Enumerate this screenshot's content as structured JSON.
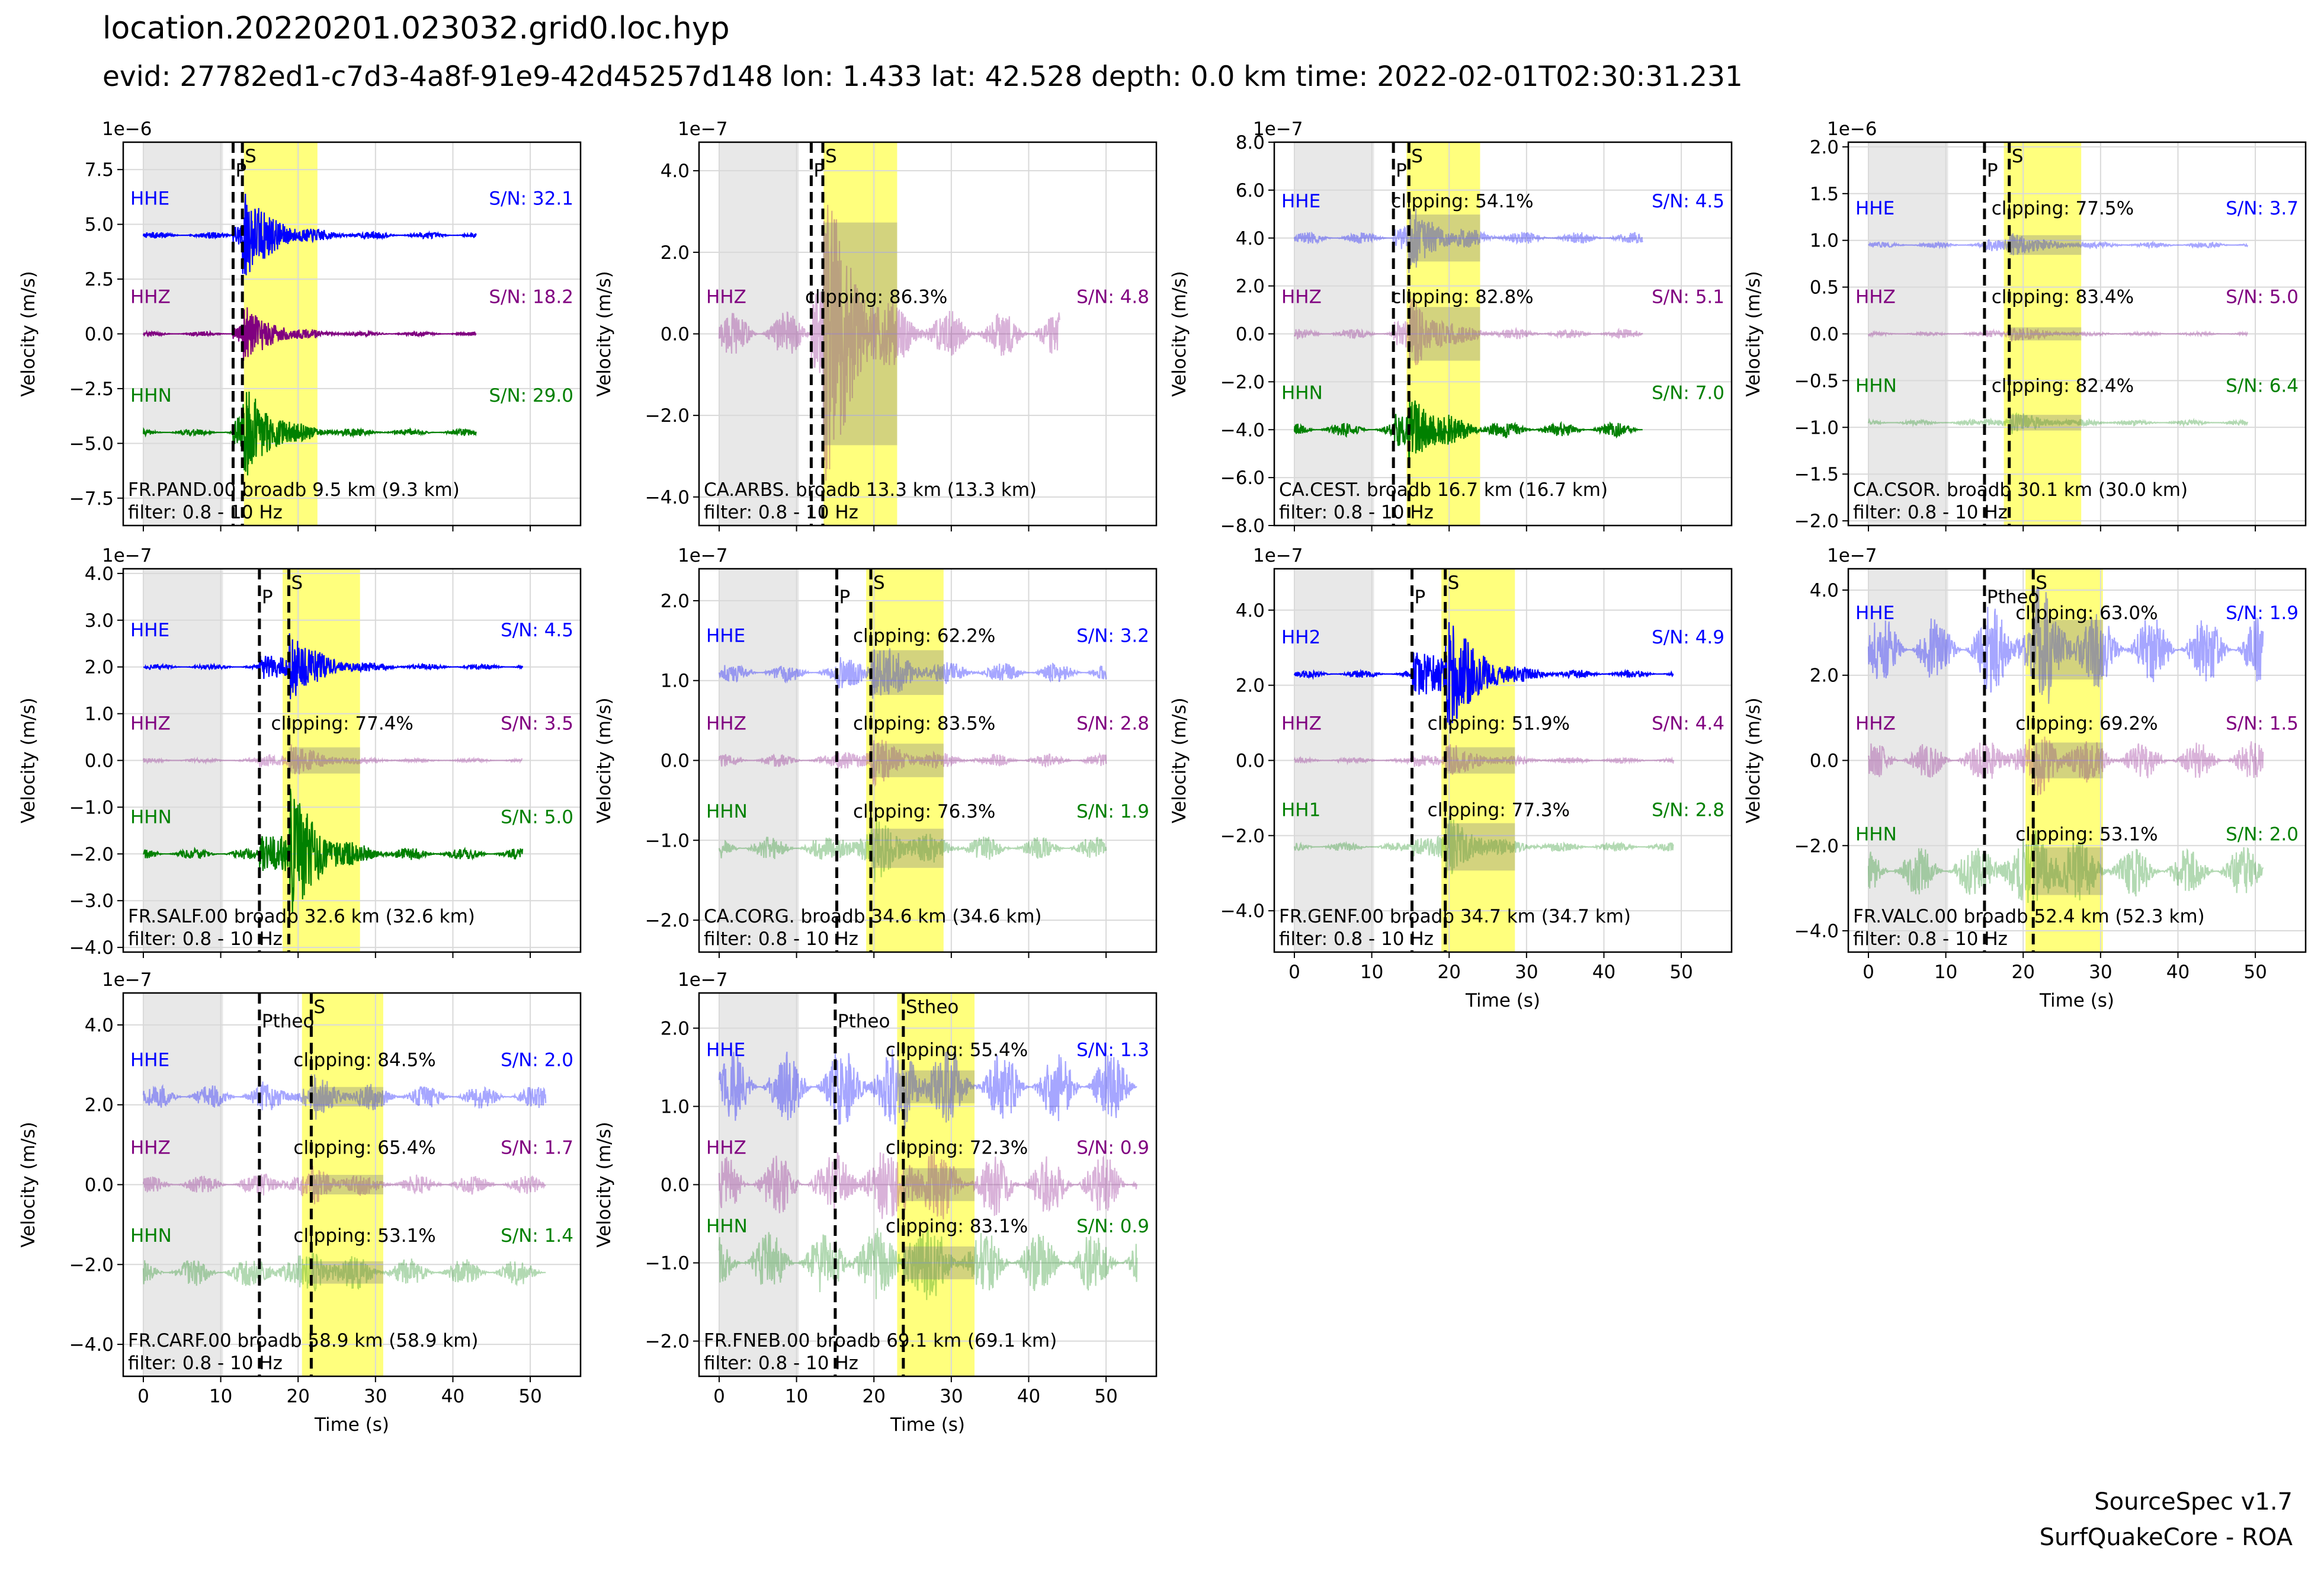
{
  "figure": {
    "title": "location.20220201.023032.grid0.loc.hyp",
    "subtitle": "evid: 27782ed1-c7d3-4a8f-91e9-42d45257d148 lon: 1.433 lat: 42.528 depth: 0.0 km time: 2022-02-01T02:30:31.231",
    "credit_line1": "SourceSpec v1.7",
    "credit_line2": "SurfQuakeCore - ROA"
  },
  "colors": {
    "E": "#0000ff",
    "Z": "#800080",
    "N": "#008000",
    "noise_window": "#e8e8e8",
    "signal_window": "#ffff66",
    "clipped_overlay": "#808080"
  },
  "chart_data": [
    {
      "type": "line",
      "station": "FR.PAND.00 broadb 9.5 km (9.3 km)",
      "filter": "filter: 0.8 - 10 Hz",
      "ylabel": "Velocity (m/s)",
      "xlabel": "Time (s)",
      "show_xlabel": false,
      "exponent": "1e−6",
      "ylim": [
        -8.75,
        8.75
      ],
      "yticks": [
        -7.5,
        -5.0,
        -2.5,
        0.0,
        2.5,
        5.0,
        7.5
      ],
      "ytick_labels": [
        "−7.5",
        "−5.0",
        "−2.5",
        "0.0",
        "2.5",
        "5.0",
        "7.5"
      ],
      "xlim": [
        -2.6,
        56.5
      ],
      "xticks": [
        0,
        10,
        20,
        30,
        40,
        50
      ],
      "xtick_labels": [
        "0",
        "10",
        "20",
        "30",
        "40",
        "50"
      ],
      "noise_window": [
        0,
        10.3
      ],
      "signal_window": [
        13,
        22.5
      ],
      "p_time": 11.6,
      "p_label": "P",
      "s_time": 12.8,
      "s_label": "S",
      "trace_end": 43,
      "traces": [
        {
          "component": "HHE",
          "comp_key": "E",
          "offset": 4.5,
          "alpha": 1.0,
          "sn": "S/N: 32.1",
          "clipping": "",
          "amp": 0.15,
          "peak": 2.2
        },
        {
          "component": "HHZ",
          "comp_key": "Z",
          "offset": 0.0,
          "alpha": 1.0,
          "sn": "S/N: 18.2",
          "clipping": "",
          "amp": 0.1,
          "peak": 1.4
        },
        {
          "component": "HHN",
          "comp_key": "N",
          "offset": -4.5,
          "alpha": 1.0,
          "sn": "S/N: 29.0",
          "clipping": "",
          "amp": 0.15,
          "peak": 2.3
        }
      ]
    },
    {
      "type": "line",
      "station": "CA.ARBS. broadb 13.3 km (13.3 km)",
      "filter": "filter: 0.8 - 10 Hz",
      "ylabel": "Velocity (m/s)",
      "xlabel": "Time (s)",
      "show_xlabel": false,
      "exponent": "1e−7",
      "ylim": [
        -4.7,
        4.7
      ],
      "yticks": [
        -4.0,
        -2.0,
        0.0,
        2.0,
        4.0
      ],
      "ytick_labels": [
        "−4.0",
        "−2.0",
        "0.0",
        "2.0",
        "4.0"
      ],
      "xlim": [
        -2.6,
        56.5
      ],
      "xticks": [
        0,
        10,
        20,
        30,
        40,
        50
      ],
      "xtick_labels": [
        "0",
        "10",
        "20",
        "30",
        "40",
        "50"
      ],
      "noise_window": [
        0,
        10.3
      ],
      "signal_window": [
        13.5,
        23
      ],
      "p_time": 11.9,
      "p_label": "P",
      "s_time": 13.4,
      "s_label": "S",
      "trace_end": 44,
      "traces": [
        {
          "component": "HHZ",
          "comp_key": "Z",
          "offset": 0.0,
          "alpha": 0.3,
          "sn": "S/N: 4.8",
          "clipping": "clipping: 86.3%",
          "amp": 0.55,
          "peak": 3.9
        }
      ]
    },
    {
      "type": "line",
      "station": "CA.CEST. broadb 16.7 km (16.7 km)",
      "filter": "filter: 0.8 - 10 Hz",
      "ylabel": "Velocity (m/s)",
      "xlabel": "Time (s)",
      "show_xlabel": false,
      "exponent": "1e−7",
      "ylim": [
        -8.0,
        8.0
      ],
      "yticks": [
        -8.0,
        -6.0,
        -4.0,
        -2.0,
        0.0,
        2.0,
        4.0,
        6.0,
        8.0
      ],
      "ytick_labels": [
        "−8.0",
        "−6.0",
        "−4.0",
        "−2.0",
        "0.0",
        "2.0",
        "4.0",
        "6.0",
        "8.0"
      ],
      "xlim": [
        -2.6,
        56.5
      ],
      "xticks": [
        0,
        10,
        20,
        30,
        40,
        50
      ],
      "xtick_labels": [
        "0",
        "10",
        "20",
        "30",
        "40",
        "50"
      ],
      "noise_window": [
        0,
        10.3
      ],
      "signal_window": [
        14.5,
        24
      ],
      "p_time": 12.8,
      "p_label": "P",
      "s_time": 14.8,
      "s_label": "S",
      "trace_end": 45,
      "traces": [
        {
          "component": "HHE",
          "comp_key": "E",
          "offset": 4.0,
          "alpha": 0.35,
          "sn": "S/N: 4.5",
          "clipping": "clipping: 54.1%",
          "amp": 0.25,
          "peak": 1.4
        },
        {
          "component": "HHZ",
          "comp_key": "Z",
          "offset": 0.0,
          "alpha": 0.3,
          "sn": "S/N: 5.1",
          "clipping": "clipping: 82.8%",
          "amp": 0.2,
          "peak": 1.6
        },
        {
          "component": "HHN",
          "comp_key": "N",
          "offset": -4.0,
          "alpha": 1.0,
          "sn": "S/N: 7.0",
          "clipping": "",
          "amp": 0.3,
          "peak": 1.5
        }
      ]
    },
    {
      "type": "line",
      "station": "CA.CSOR. broadb 30.1 km (30.0 km)",
      "filter": "filter: 0.8 - 10 Hz",
      "ylabel": "Velocity (m/s)",
      "xlabel": "Time (s)",
      "show_xlabel": false,
      "exponent": "1e−6",
      "ylim": [
        -2.05,
        2.05
      ],
      "yticks": [
        -2.0,
        -1.5,
        -1.0,
        -0.5,
        0.0,
        0.5,
        1.0,
        1.5,
        2.0
      ],
      "ytick_labels": [
        "−2.0",
        "−1.5",
        "−1.0",
        "−0.5",
        "0.0",
        "0.5",
        "1.0",
        "1.5",
        "2.0"
      ],
      "xlim": [
        -2.6,
        56.5
      ],
      "xticks": [
        0,
        10,
        20,
        30,
        40,
        50
      ],
      "xtick_labels": [
        "0",
        "10",
        "20",
        "30",
        "40",
        "50"
      ],
      "noise_window": [
        0,
        10.3
      ],
      "signal_window": [
        17.5,
        27.5
      ],
      "p_time": 15.0,
      "p_label": "P",
      "s_time": 18.2,
      "s_label": "S",
      "trace_end": 49,
      "traces": [
        {
          "component": "HHE",
          "comp_key": "E",
          "offset": 0.95,
          "alpha": 0.35,
          "sn": "S/N: 3.7",
          "clipping": "clipping: 77.5%",
          "amp": 0.03,
          "peak": 0.15
        },
        {
          "component": "HHZ",
          "comp_key": "Z",
          "offset": 0.0,
          "alpha": 0.3,
          "sn": "S/N: 5.0",
          "clipping": "clipping: 83.4%",
          "amp": 0.02,
          "peak": 0.1
        },
        {
          "component": "HHN",
          "comp_key": "N",
          "offset": -0.95,
          "alpha": 0.3,
          "sn": "S/N: 6.4",
          "clipping": "clipping: 82.4%",
          "amp": 0.03,
          "peak": 0.12
        }
      ]
    },
    {
      "type": "line",
      "station": "FR.SALF.00 broadb 32.6 km (32.6 km)",
      "filter": "filter: 0.8 - 10 Hz",
      "ylabel": "Velocity (m/s)",
      "xlabel": "Time (s)",
      "show_xlabel": false,
      "exponent": "1e−7",
      "ylim": [
        -4.1,
        4.1
      ],
      "yticks": [
        -4.0,
        -3.0,
        -2.0,
        -1.0,
        0.0,
        1.0,
        2.0,
        3.0,
        4.0
      ],
      "ytick_labels": [
        "−4.0",
        "−3.0",
        "−2.0",
        "−1.0",
        "0.0",
        "1.0",
        "2.0",
        "3.0",
        "4.0"
      ],
      "xlim": [
        -2.6,
        56.5
      ],
      "xticks": [
        0,
        10,
        20,
        30,
        40,
        50
      ],
      "xtick_labels": [
        "0",
        "10",
        "20",
        "30",
        "40",
        "50"
      ],
      "noise_window": [
        0,
        10.3
      ],
      "signal_window": [
        18,
        28
      ],
      "p_time": 15.0,
      "p_label": "P",
      "s_time": 18.8,
      "s_label": "S",
      "trace_end": 49,
      "traces": [
        {
          "component": "HHE",
          "comp_key": "E",
          "offset": 2.0,
          "alpha": 1.0,
          "sn": "S/N: 4.5",
          "clipping": "",
          "amp": 0.06,
          "peak": 0.8
        },
        {
          "component": "HHZ",
          "comp_key": "Z",
          "offset": 0.0,
          "alpha": 0.3,
          "sn": "S/N: 3.5",
          "clipping": "clipping: 77.4%",
          "amp": 0.05,
          "peak": 0.4
        },
        {
          "component": "HHN",
          "comp_key": "N",
          "offset": -2.0,
          "alpha": 1.0,
          "sn": "S/N: 5.0",
          "clipping": "",
          "amp": 0.12,
          "peak": 1.5
        }
      ]
    },
    {
      "type": "line",
      "station": "CA.CORG. broadb 34.6 km (34.6 km)",
      "filter": "filter: 0.8 - 10 Hz",
      "ylabel": "Velocity (m/s)",
      "xlabel": "Time (s)",
      "show_xlabel": false,
      "exponent": "1e−7",
      "ylim": [
        -2.4,
        2.4
      ],
      "yticks": [
        -2.0,
        -1.0,
        0.0,
        1.0,
        2.0
      ],
      "ytick_labels": [
        "−2.0",
        "−1.0",
        "0.0",
        "1.0",
        "2.0"
      ],
      "xlim": [
        -2.6,
        56.5
      ],
      "xticks": [
        0,
        10,
        20,
        30,
        40,
        50
      ],
      "xtick_labels": [
        "0",
        "10",
        "20",
        "30",
        "40",
        "50"
      ],
      "noise_window": [
        0,
        10.3
      ],
      "signal_window": [
        19,
        29
      ],
      "p_time": 15.2,
      "p_label": "P",
      "s_time": 19.6,
      "s_label": "S",
      "trace_end": 50,
      "traces": [
        {
          "component": "HHE",
          "comp_key": "E",
          "offset": 1.1,
          "alpha": 0.35,
          "sn": "S/N: 3.2",
          "clipping": "clipping: 62.2%",
          "amp": 0.12,
          "peak": 0.4
        },
        {
          "component": "HHZ",
          "comp_key": "Z",
          "offset": 0.0,
          "alpha": 0.3,
          "sn": "S/N: 2.8",
          "clipping": "clipping: 83.5%",
          "amp": 0.08,
          "peak": 0.3
        },
        {
          "component": "HHN",
          "comp_key": "N",
          "offset": -1.1,
          "alpha": 0.3,
          "sn": "S/N: 1.9",
          "clipping": "clipping: 76.3%",
          "amp": 0.15,
          "peak": 0.35
        }
      ]
    },
    {
      "type": "line",
      "station": "FR.GENF.00 broadb 34.7 km (34.7 km)",
      "filter": "filter: 0.8 - 10 Hz",
      "ylabel": "Velocity (m/s)",
      "xlabel": "Time (s)",
      "show_xlabel": true,
      "exponent": "1e−7",
      "ylim": [
        -5.1,
        5.1
      ],
      "yticks": [
        -4.0,
        -2.0,
        0.0,
        2.0,
        4.0
      ],
      "ytick_labels": [
        "−4.0",
        "−2.0",
        "0.0",
        "2.0",
        "4.0"
      ],
      "xlim": [
        -2.6,
        56.5
      ],
      "xticks": [
        0,
        10,
        20,
        30,
        40,
        50
      ],
      "xtick_labels": [
        "0",
        "10",
        "20",
        "30",
        "40",
        "50"
      ],
      "noise_window": [
        0,
        10.3
      ],
      "signal_window": [
        19,
        28.5
      ],
      "p_time": 15.2,
      "p_label": "P",
      "s_time": 19.5,
      "s_label": "S",
      "trace_end": 49,
      "traces": [
        {
          "component": "HH2",
          "comp_key": "E",
          "offset": 2.3,
          "alpha": 1.0,
          "sn": "S/N: 4.9",
          "clipping": "",
          "amp": 0.1,
          "peak": 1.9
        },
        {
          "component": "HHZ",
          "comp_key": "Z",
          "offset": 0.0,
          "alpha": 0.3,
          "sn": "S/N: 4.4",
          "clipping": "clipping: 51.9%",
          "amp": 0.08,
          "peak": 0.5
        },
        {
          "component": "HH1",
          "comp_key": "N",
          "offset": -2.3,
          "alpha": 0.3,
          "sn": "S/N: 2.8",
          "clipping": "clipping: 77.3%",
          "amp": 0.12,
          "peak": 0.9
        }
      ]
    },
    {
      "type": "line",
      "station": "FR.VALC.00 broadb 52.4 km (52.3 km)",
      "filter": "filter: 0.8 - 10 Hz",
      "ylabel": "Velocity (m/s)",
      "xlabel": "Time (s)",
      "show_xlabel": true,
      "exponent": "1e−7",
      "ylim": [
        -4.5,
        4.5
      ],
      "yticks": [
        -4.0,
        -2.0,
        0.0,
        2.0,
        4.0
      ],
      "ytick_labels": [
        "−4.0",
        "−2.0",
        "0.0",
        "2.0",
        "4.0"
      ],
      "xlim": [
        -2.6,
        56.5
      ],
      "xticks": [
        0,
        10,
        20,
        30,
        40,
        50
      ],
      "xtick_labels": [
        "0",
        "10",
        "20",
        "30",
        "40",
        "50"
      ],
      "noise_window": [
        0,
        10.3
      ],
      "signal_window": [
        20.3,
        30.3
      ],
      "p_time": 15.0,
      "p_label": "Ptheo",
      "s_time": 21.3,
      "s_label": "S",
      "trace_end": 51,
      "traces": [
        {
          "component": "HHE",
          "comp_key": "E",
          "offset": 2.6,
          "alpha": 0.35,
          "sn": "S/N: 1.9",
          "clipping": "clipping: 63.0%",
          "amp": 0.8,
          "peak": 1.0
        },
        {
          "component": "HHZ",
          "comp_key": "Z",
          "offset": 0.0,
          "alpha": 0.3,
          "sn": "S/N: 1.5",
          "clipping": "clipping: 69.2%",
          "amp": 0.45,
          "peak": 0.6
        },
        {
          "component": "HHN",
          "comp_key": "N",
          "offset": -2.6,
          "alpha": 0.3,
          "sn": "S/N: 2.0",
          "clipping": "clipping: 53.1%",
          "amp": 0.6,
          "peak": 0.8
        }
      ]
    },
    {
      "type": "line",
      "station": "FR.CARF.00 broadb 58.9 km (58.9 km)",
      "filter": "filter: 0.8 - 10 Hz",
      "ylabel": "Velocity (m/s)",
      "xlabel": "Time (s)",
      "show_xlabel": true,
      "exponent": "1e−7",
      "ylim": [
        -4.8,
        4.8
      ],
      "yticks": [
        -4.0,
        -2.0,
        0.0,
        2.0,
        4.0
      ],
      "ytick_labels": [
        "−4.0",
        "−2.0",
        "0.0",
        "2.0",
        "4.0"
      ],
      "xlim": [
        -2.6,
        56.5
      ],
      "xticks": [
        0,
        10,
        20,
        30,
        40,
        50
      ],
      "xtick_labels": [
        "0",
        "10",
        "20",
        "30",
        "40",
        "50"
      ],
      "noise_window": [
        0,
        10.3
      ],
      "signal_window": [
        20.5,
        31
      ],
      "p_time": 15.0,
      "p_label": "Ptheo",
      "s_time": 21.7,
      "s_label": "S",
      "trace_end": 52,
      "traces": [
        {
          "component": "HHE",
          "comp_key": "E",
          "offset": 2.2,
          "alpha": 0.35,
          "sn": "S/N: 2.0",
          "clipping": "clipping: 84.5%",
          "amp": 0.3,
          "peak": 0.35
        },
        {
          "component": "HHZ",
          "comp_key": "Z",
          "offset": 0.0,
          "alpha": 0.3,
          "sn": "S/N: 1.7",
          "clipping": "clipping: 65.4%",
          "amp": 0.25,
          "peak": 0.35
        },
        {
          "component": "HHN",
          "comp_key": "N",
          "offset": -2.2,
          "alpha": 0.3,
          "sn": "S/N: 1.4",
          "clipping": "clipping: 53.1%",
          "amp": 0.35,
          "peak": 0.4
        }
      ]
    },
    {
      "type": "line",
      "station": "FR.FNEB.00 broadb 69.1 km (69.1 km)",
      "filter": "filter: 0.8 - 10 Hz",
      "ylabel": "Velocity (m/s)",
      "xlabel": "Time (s)",
      "show_xlabel": true,
      "exponent": "1e−7",
      "ylim": [
        -2.45,
        2.45
      ],
      "yticks": [
        -2.0,
        -1.0,
        0.0,
        1.0,
        2.0
      ],
      "ytick_labels": [
        "−2.0",
        "−1.0",
        "0.0",
        "1.0",
        "2.0"
      ],
      "xlim": [
        -2.6,
        56.5
      ],
      "xticks": [
        0,
        10,
        20,
        30,
        40,
        50
      ],
      "xtick_labels": [
        "0",
        "10",
        "20",
        "30",
        "40",
        "50"
      ],
      "noise_window": [
        0,
        10.3
      ],
      "signal_window": [
        23,
        33
      ],
      "p_time": 15.0,
      "p_label": "Ptheo",
      "s_time": 23.8,
      "s_label": "Stheo",
      "trace_end": 54,
      "traces": [
        {
          "component": "HHE",
          "comp_key": "E",
          "offset": 1.25,
          "alpha": 0.35,
          "sn": "S/N: 1.3",
          "clipping": "clipping: 55.4%",
          "amp": 0.45,
          "peak": 0.3
        },
        {
          "component": "HHZ",
          "comp_key": "Z",
          "offset": 0.0,
          "alpha": 0.3,
          "sn": "S/N: 0.9",
          "clipping": "clipping: 72.3%",
          "amp": 0.4,
          "peak": 0.3
        },
        {
          "component": "HHN",
          "comp_key": "N",
          "offset": -1.0,
          "alpha": 0.3,
          "sn": "S/N: 0.9",
          "clipping": "clipping: 83.1%",
          "amp": 0.4,
          "peak": 0.3
        }
      ]
    }
  ]
}
